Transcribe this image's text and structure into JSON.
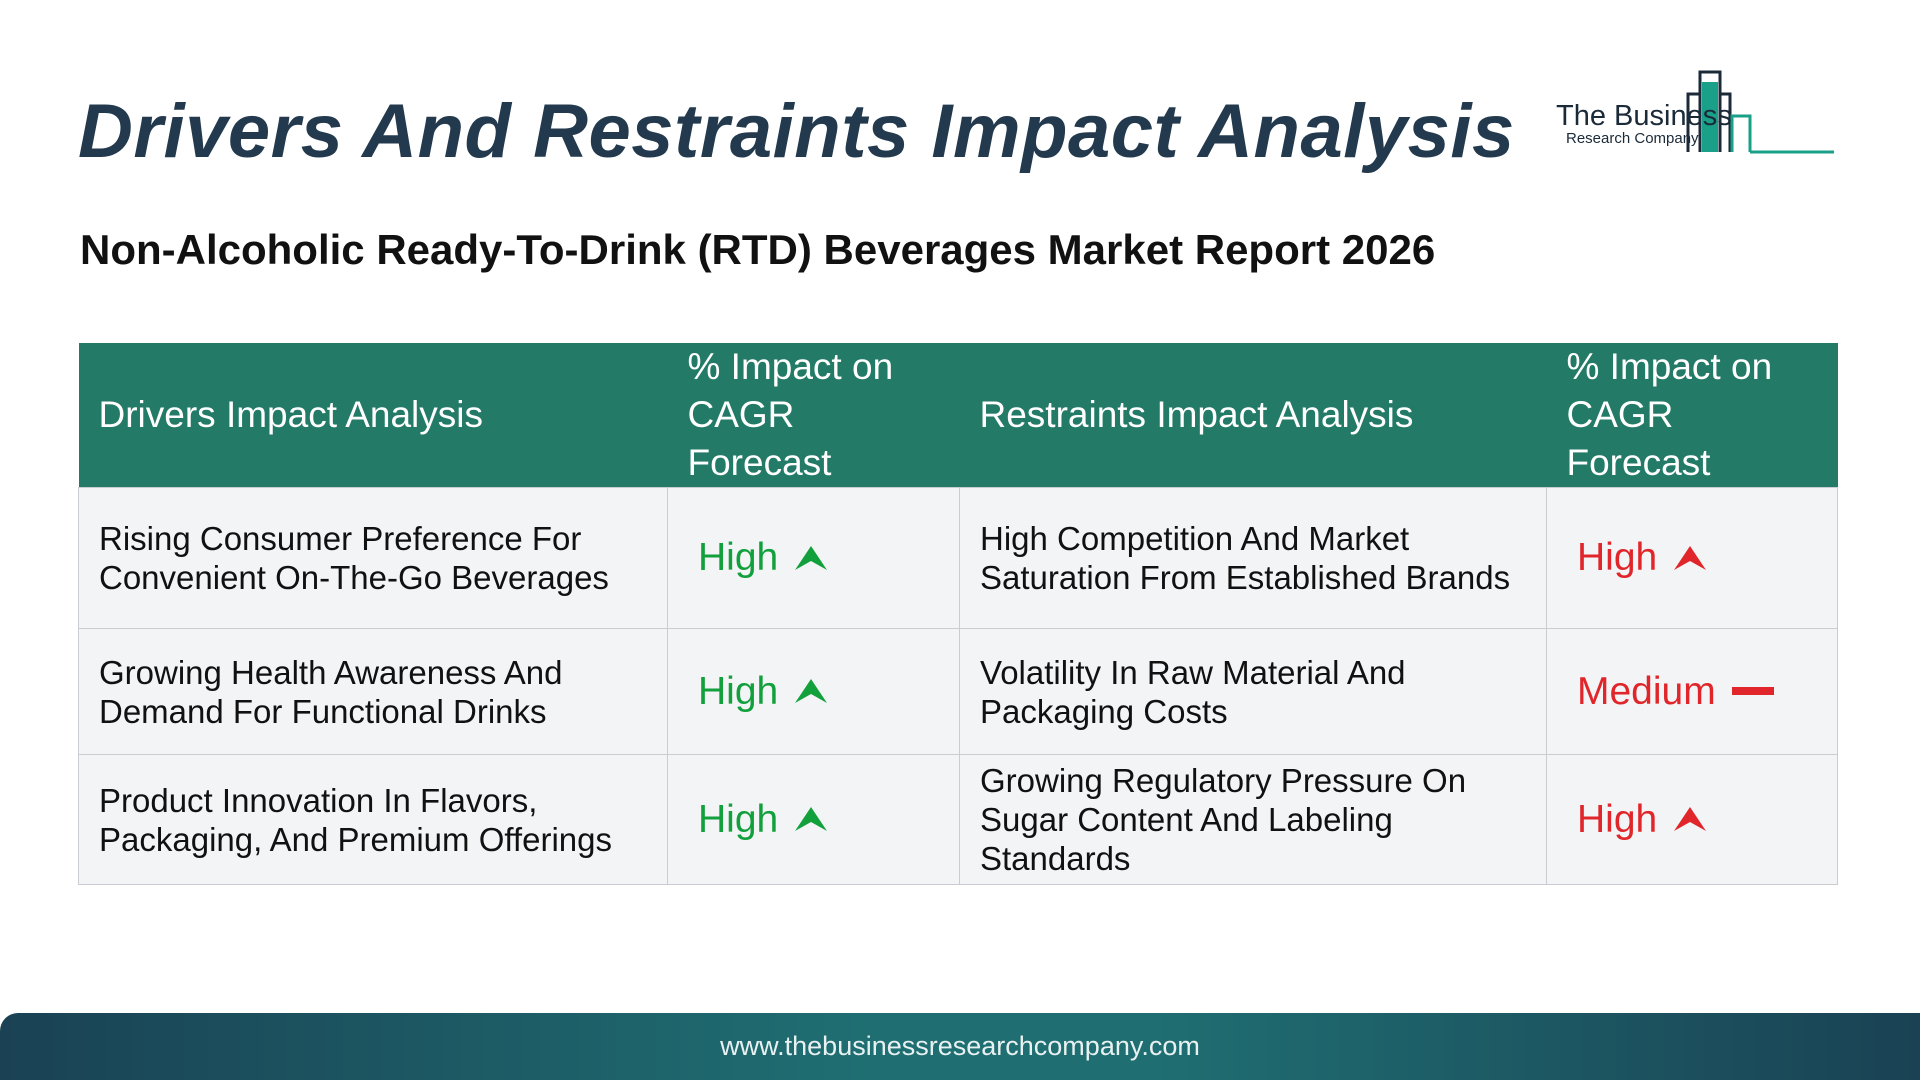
{
  "header": {
    "title": "Drivers And Restraints Impact Analysis",
    "subtitle": "Non-Alcoholic Ready-To-Drink (RTD) Beverages Market Report 2026"
  },
  "logo": {
    "name": "The Business",
    "sub": "Research Company",
    "accent_color": "#1aa089"
  },
  "table": {
    "columns": [
      "Drivers Impact Analysis",
      "% Impact on CAGR Forecast",
      "Restraints Impact Analysis",
      "% Impact on CAGR Forecast"
    ],
    "header_color": "#237a67",
    "rows": [
      {
        "driver": "Rising Consumer Preference For Convenient On-The-Go Beverages",
        "driver_impact": "High",
        "driver_icon": "up-arrow-icon",
        "restraint": "High Competition And Market Saturation From Established Brands",
        "restraint_impact": "High",
        "restraint_icon": "up-arrow-icon"
      },
      {
        "driver": "Growing Health Awareness And Demand For Functional Drinks",
        "driver_impact": "High",
        "driver_icon": "up-arrow-icon",
        "restraint": "Volatility In Raw Material And Packaging Costs",
        "restraint_impact": "Medium",
        "restraint_icon": "dash-icon"
      },
      {
        "driver": "Product Innovation In Flavors, Packaging, And Premium Offerings",
        "driver_impact": "High",
        "driver_icon": "up-arrow-icon",
        "restraint": "Growing Regulatory Pressure On Sugar Content And Labeling Standards",
        "restraint_impact": "High",
        "restraint_icon": "up-arrow-icon"
      }
    ],
    "driver_color": "#12a03c",
    "restraint_color": "#e0262a"
  },
  "footer": {
    "url": "www.thebusinessresearchcompany.com"
  }
}
